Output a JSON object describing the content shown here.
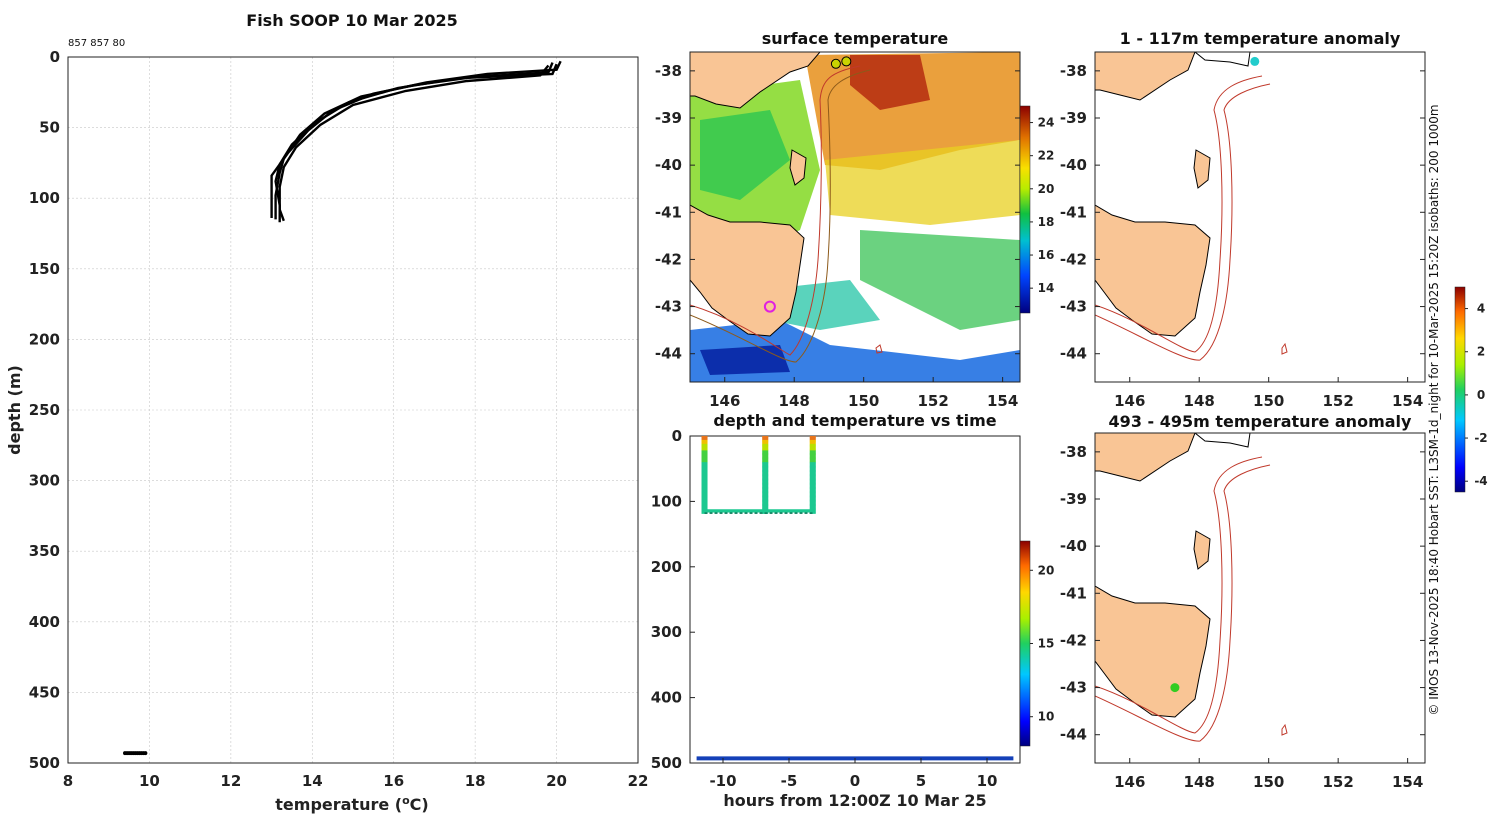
{
  "figure_title": "Fish SOOP 10 Mar 2025",
  "serial": "857 857 80",
  "credit": "© IMOS 13-Nov-2025 18:40 Hobart SST: L3SM-1d_night for 10-Mar-2025 15:20Z isobaths: 200  1000m",
  "colors": {
    "line": "#000000",
    "land": "#f9c595",
    "isobath": "#c0392b",
    "grid": "#c8c8c8"
  },
  "chart_data": [
    {
      "id": "profile",
      "type": "line",
      "title": "",
      "xlabel": "temperature (",
      "xlabel_sup": "o",
      "xlabel_end": "C)",
      "ylabel": "depth (m)",
      "xlim": [
        8,
        22
      ],
      "ylim": [
        0,
        500
      ],
      "xticks": [
        8,
        10,
        12,
        14,
        16,
        18,
        20,
        22
      ],
      "yticks": [
        0,
        50,
        100,
        150,
        200,
        250,
        300,
        350,
        400,
        450,
        500
      ],
      "series": [
        {
          "name": "cast 1",
          "points": [
            [
              19.9,
              4
            ],
            [
              19.8,
              11
            ],
            [
              18.0,
              14
            ],
            [
              16.5,
              20
            ],
            [
              15.2,
              28
            ],
            [
              14.3,
              40
            ],
            [
              13.7,
              55
            ],
            [
              13.3,
              72
            ],
            [
              13.2,
              82
            ],
            [
              13.1,
              98
            ],
            [
              13.1,
              115
            ]
          ]
        },
        {
          "name": "cast 2",
          "points": [
            [
              20.0,
              5
            ],
            [
              19.9,
              12
            ],
            [
              17.6,
              15
            ],
            [
              16.1,
              22
            ],
            [
              14.9,
              32
            ],
            [
              14.1,
              46
            ],
            [
              13.5,
              62
            ],
            [
              13.2,
              76
            ],
            [
              13.1,
              88
            ],
            [
              13.2,
              105
            ],
            [
              13.2,
              117
            ]
          ]
        },
        {
          "name": "cast 3",
          "points": [
            [
              20.1,
              3
            ],
            [
              20.0,
              9
            ],
            [
              18.3,
              12
            ],
            [
              16.8,
              18
            ],
            [
              15.5,
              26
            ],
            [
              14.5,
              38
            ],
            [
              13.9,
              52
            ],
            [
              13.4,
              68
            ],
            [
              13.0,
              84
            ],
            [
              13.0,
              100
            ],
            [
              13.0,
              114
            ]
          ]
        },
        {
          "name": "cast 4",
          "points": [
            [
              19.8,
              6
            ],
            [
              19.6,
              13
            ],
            [
              17.8,
              17
            ],
            [
              16.3,
              24
            ],
            [
              15.0,
              34
            ],
            [
              14.2,
              48
            ],
            [
              13.6,
              64
            ],
            [
              13.3,
              78
            ],
            [
              13.2,
              92
            ],
            [
              13.2,
              108
            ],
            [
              13.3,
              116
            ]
          ]
        }
      ],
      "bottom_points": {
        "depth": 493,
        "x_range": [
          9.4,
          9.9
        ]
      }
    },
    {
      "id": "sst_map",
      "type": "heatmap",
      "title": "surface temperature",
      "xlim": [
        145,
        154.5
      ],
      "ylim": [
        -44.6,
        -37.6
      ],
      "xticks": [
        146,
        148,
        150,
        152,
        154
      ],
      "yticks": [
        -38,
        -39,
        -40,
        -41,
        -42,
        -43,
        -44
      ],
      "colorbar": {
        "min": 12.5,
        "max": 25,
        "ticks": [
          14,
          16,
          18,
          20,
          22,
          24
        ]
      },
      "markers": [
        {
          "lon": 147.3,
          "lat": -43.0,
          "color": "#e020e0"
        },
        {
          "lon": 149.5,
          "lat": -37.8,
          "color": "#c9d400"
        }
      ]
    },
    {
      "id": "depth_time",
      "type": "scatter",
      "title": "depth and temperature vs time",
      "xlabel": "hours from 12:00Z 10 Mar 25",
      "xlim": [
        -12.5,
        12.5
      ],
      "ylim": [
        0,
        500
      ],
      "xticks": [
        -10,
        -5,
        0,
        5,
        10
      ],
      "yticks": [
        0,
        100,
        200,
        300,
        400,
        500
      ],
      "colorbar": {
        "min": 8,
        "max": 22,
        "ticks": [
          10,
          15,
          20
        ]
      },
      "profiles_hours": [
        -11.4,
        -6.8,
        -3.2
      ],
      "bottom_depth": 493
    },
    {
      "id": "anom_upper",
      "type": "heatmap",
      "title": "1 - 117m temperature anomaly",
      "xlim": [
        145,
        154.5
      ],
      "ylim": [
        -44.6,
        -37.6
      ],
      "xticks": [
        146,
        148,
        150,
        152,
        154
      ],
      "yticks": [
        -38,
        -39,
        -40,
        -41,
        -42,
        -43,
        -44
      ],
      "colorbar": {
        "min": -4.5,
        "max": 5,
        "ticks": [
          4,
          2,
          0,
          -2,
          -4
        ]
      },
      "marker": {
        "lon": 149.6,
        "lat": -37.8,
        "color": "#22cccc"
      }
    },
    {
      "id": "anom_deep",
      "type": "heatmap",
      "title": "493 - 495m temperature anomaly",
      "xlim": [
        145,
        154.5
      ],
      "ylim": [
        -44.6,
        -37.6
      ],
      "xticks": [
        146,
        148,
        150,
        152,
        154
      ],
      "yticks": [
        -38,
        -39,
        -40,
        -41,
        -42,
        -43,
        -44
      ],
      "marker": {
        "lon": 147.3,
        "lat": -43.0,
        "color": "#33cc22"
      }
    }
  ]
}
